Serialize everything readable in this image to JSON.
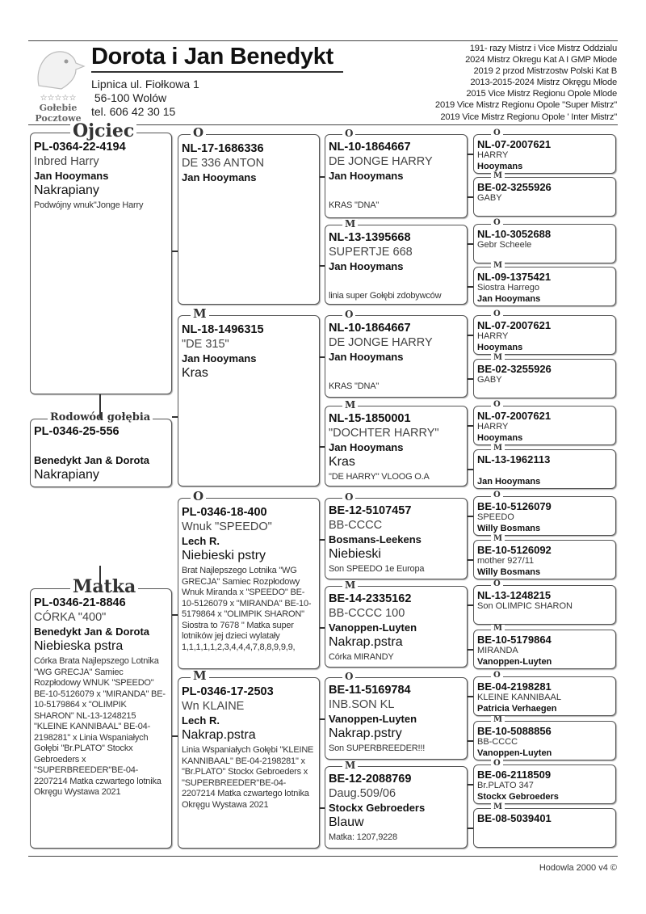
{
  "header": {
    "title": "Dorota i Jan Benedykt",
    "address_line1": "Lipnica ul. Fiołkowa 1",
    "address_line2": " 56-100 Wolów",
    "phone": "tel. 606 42 30 15",
    "logo_text": [
      "☆☆☆☆☆",
      "Gołebie",
      "Pocztowe"
    ],
    "achievements": [
      "191- razy  Mistrz i Vice Mistrz Oddzialu",
      "2024 Mistrz Okregu Kat A I GMP  Młode",
      "2019 2 przod Mistrzostw Polski Kat B",
      "2013-2015-2024 Mistrz Okręgu Młode",
      "2015 Vice Mistrz Regionu Opole Mlode",
      "2019 Vice Mistrz Regionu Opole \"Super Mistrz\"",
      "2019 Vice Mistrz Regionu Opole ' Inter Mistrz\""
    ]
  },
  "gen1": [
    {
      "label": "Ojciec",
      "ring": "PL-0364-22-4194",
      "name": "Inbred Harry",
      "owner": "Jan Hooymans",
      "color": "Nakrapiany",
      "note": "Podwójny wnuk\"Jonge Harry"
    },
    {
      "label": "Rodowód gołębia",
      "ring": "PL-0346-25-556",
      "name": "",
      "owner": "Benedykt Jan & Dorota",
      "color": "Nakrapiany",
      "note": ""
    },
    {
      "label": "Matka",
      "ring": "PL-0346-21-8846",
      "name": "CÓRKA \"400\"",
      "owner": "Benedykt Jan & Dorota",
      "color": "Niebieska pstra",
      "note": "Córka Brata Najlepszego Lotnika \"WG GRECJA\" Samiec Rozpłodowy  WNUK \"SPEEDO\" BE-10-5126079 x \"MIRANDA\" BE-10-5179864 x \"OLIMPIK SHARON\" NL-13-1248215 \"KLEINE KANNIBAAL\" BE-04-2198281\"  x Linia Wspaniałych Gołębi \"Br.PLATO\"  Stockx Gebroeders x \"SUPERBREEDER\"BE-04-2207214 Matka czwartego lotnika Okręgu Wystawa 2021"
    }
  ],
  "gen2": [
    {
      "label": "O",
      "ring": "NL-17-1686336",
      "name": "DE 336 ANTON",
      "owner": "Jan Hooymans",
      "color": "",
      "note": ""
    },
    {
      "label": "M",
      "ring": "NL-18-1496315",
      "name": "\"DE 315\"",
      "owner": "Jan Hooymans",
      "color": "Kras",
      "note": ""
    },
    {
      "label": "O",
      "ring": "PL-0346-18-400",
      "name": "Wnuk \"SPEEDO\"",
      "owner": "Lech R.",
      "color": "Niebieski pstry",
      "note": "Brat Najlepszego Lotnika \"WG GRECJA\" Samiec Rozpłodowy Wnuk Miranda x  \"SPEEDO\" BE-10-5126079 x \"MIRANDA\" BE-10-5179864 x \"OLIMPIK SHARON\" Siostra to 7678 \" Matka super lotników jej dzieci wylatały 1,1,1,1,1,2,3,4,4,4,7,8,8,9,9,9,"
    },
    {
      "label": "M",
      "ring": "PL-0346-17-2503",
      "name": "Wn KLAINE",
      "owner": "Lech R.",
      "color": "Nakrap.pstra",
      "note": "Linia Wspaniałych Gołębi \"KLEINE KANNIBAAL\" BE-04-2198281\"  x \"Br.PLATO\"  Stockx Gebroeders x \"SUPERBREEDER\"BE-04-2207214 Matka czwartego lotnika Okręgu Wystawa 2021"
    }
  ],
  "gen3": [
    {
      "label": "O",
      "ring": "NL-10-1864667",
      "name": "DE JONGE HARRY",
      "owner": "Jan Hooymans",
      "color": "",
      "note": "KRAS \"DNA\""
    },
    {
      "label": "M",
      "ring": "NL-13-1395668",
      "name": "SUPERTJE 668",
      "owner": "Jan Hooymans",
      "color": "",
      "note": "linia super Gołębi zdobywców"
    },
    {
      "label": "O",
      "ring": "NL-10-1864667",
      "name": "DE JONGE HARRY",
      "owner": "Jan Hooymans",
      "color": "",
      "note": "KRAS \"DNA\""
    },
    {
      "label": "M",
      "ring": "NL-15-1850001",
      "name": "\"DOCHTER HARRY\"",
      "owner": "Jan Hooymans",
      "color": "Kras",
      "note": "\"DE HARRY\" VLOOG O.A"
    },
    {
      "label": "O",
      "ring": "BE-12-5107457",
      "name": "BB-CCCC",
      "owner": "Bosmans-Leekens",
      "color": "Niebieski",
      "note": "Son SPEEDO 1e Europa"
    },
    {
      "label": "M",
      "ring": "BE-14-2335162",
      "name": "BB-CCCC 100",
      "owner": "Vanoppen-Luyten",
      "color": "Nakrap.pstra",
      "note": "Córka MIRANDY"
    },
    {
      "label": "O",
      "ring": "BE-11-5169784",
      "name": "INB.SON KL",
      "owner": "Vanoppen-Luyten",
      "color": "Nakrap.pstry",
      "note": "Son SUPERBREEDER!!!"
    },
    {
      "label": "M",
      "ring": "BE-12-2088769",
      "name": "Daug.509/06",
      "owner": "Stockx Gebroeders",
      "color": "Blauw",
      "note": "Matka: 1207,9228"
    }
  ],
  "gen4": [
    {
      "label": "O",
      "ring": "NL-07-2007621",
      "name": "HARRY",
      "owner": "Hooymans"
    },
    {
      "label": "M",
      "ring": "BE-02-3255926",
      "name": "GABY",
      "owner": ""
    },
    {
      "label": "O",
      "ring": "NL-10-3052688",
      "name": "Gebr Scheele",
      "owner": ""
    },
    {
      "label": "M",
      "ring": "NL-09-1375421",
      "name": "Siostra Harrego",
      "owner": "Jan Hooymans"
    },
    {
      "label": "O",
      "ring": "NL-07-2007621",
      "name": "HARRY",
      "owner": "Hooymans"
    },
    {
      "label": "M",
      "ring": "BE-02-3255926",
      "name": "GABY",
      "owner": ""
    },
    {
      "label": "O",
      "ring": "NL-07-2007621",
      "name": "HARRY",
      "owner": "Hooymans"
    },
    {
      "label": "M",
      "ring": "NL-13-1962113",
      "name": "",
      "owner": "Jan Hooymans"
    },
    {
      "label": "O",
      "ring": "BE-10-5126079",
      "name": "SPEEDO",
      "owner": "Willy Bosmans"
    },
    {
      "label": "M",
      "ring": "BE-10-5126092",
      "name": "mother 927/11",
      "owner": "Willy Bosmans"
    },
    {
      "label": "O",
      "ring": "NL-13-1248215",
      "name": "Son OLIMPIC SHARON",
      "owner": ""
    },
    {
      "label": "M",
      "ring": "BE-10-5179864",
      "name": "MIRANDA",
      "owner": "Vanoppen-Luyten"
    },
    {
      "label": "O",
      "ring": "BE-04-2198281",
      "name": "KLEINE KANNIBAAL",
      "owner": "Patricia Verhaegen"
    },
    {
      "label": "M",
      "ring": "BE-10-5088856",
      "name": "BB-CCCC",
      "owner": "Vanoppen-Luyten"
    },
    {
      "label": "O",
      "ring": "BE-06-2118509",
      "name": "Br.PLATO 347",
      "owner": "Stockx Gebroeders"
    },
    {
      "label": "M",
      "ring": "BE-08-5039401",
      "name": "",
      "owner": ""
    }
  ],
  "footer": "Hodowla 2000 v4 ©"
}
